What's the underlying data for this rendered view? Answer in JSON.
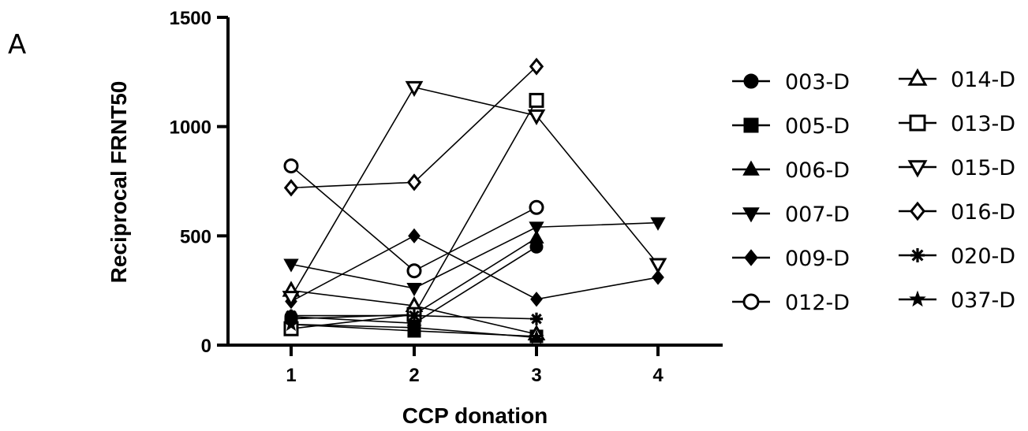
{
  "panel_label": "A",
  "chart_data": {
    "type": "line",
    "title": "",
    "xlabel": "CCP donation",
    "ylabel": "Reciprocal FRNT50",
    "xlim": [
      0.5,
      4.5
    ],
    "ylim": [
      0,
      1500
    ],
    "x_ticks": [
      1,
      2,
      3,
      4
    ],
    "y_ticks": [
      0,
      500,
      1000,
      1500
    ],
    "grid": false,
    "legend_position": "right",
    "series": [
      {
        "name": "003-D",
        "marker": "circle-filled",
        "points": [
          [
            1,
            130
          ],
          [
            2,
            100
          ],
          [
            3,
            450
          ]
        ]
      },
      {
        "name": "005-D",
        "marker": "square-filled",
        "points": [
          [
            1,
            95
          ],
          [
            2,
            65
          ],
          [
            3,
            40
          ]
        ]
      },
      {
        "name": "006-D",
        "marker": "triangle-up-filled",
        "points": [
          [
            1,
            120
          ],
          [
            2,
            140
          ],
          [
            3,
            490
          ]
        ]
      },
      {
        "name": "007-D",
        "marker": "triangle-down-filled",
        "points": [
          [
            1,
            370
          ],
          [
            2,
            260
          ],
          [
            3,
            540
          ],
          [
            4,
            560
          ]
        ]
      },
      {
        "name": "009-D",
        "marker": "diamond-filled",
        "points": [
          [
            1,
            200
          ],
          [
            2,
            500
          ],
          [
            3,
            210
          ],
          [
            4,
            310
          ]
        ]
      },
      {
        "name": "012-D",
        "marker": "circle-open",
        "points": [
          [
            1,
            820
          ],
          [
            2,
            340
          ],
          [
            3,
            630
          ]
        ]
      },
      {
        "name": "014-D",
        "marker": "triangle-up-open",
        "points": [
          [
            1,
            250
          ],
          [
            2,
            180
          ],
          [
            3,
            50
          ]
        ]
      },
      {
        "name": "013-D",
        "marker": "square-open",
        "points": [
          [
            1,
            75
          ],
          [
            2,
            140
          ],
          [
            3,
            1120
          ]
        ]
      },
      {
        "name": "015-D",
        "marker": "triangle-down-open",
        "points": [
          [
            1,
            220
          ],
          [
            2,
            1180
          ],
          [
            3,
            1050
          ],
          [
            4,
            370
          ]
        ]
      },
      {
        "name": "016-D",
        "marker": "diamond-open",
        "points": [
          [
            1,
            720
          ],
          [
            2,
            745
          ],
          [
            3,
            1275
          ]
        ]
      },
      {
        "name": "020-D",
        "marker": "asterisk",
        "points": [
          [
            1,
            135
          ],
          [
            2,
            135
          ],
          [
            3,
            120
          ]
        ]
      },
      {
        "name": "037-D",
        "marker": "star",
        "points": [
          [
            1,
            95
          ],
          [
            2,
            80
          ],
          [
            3,
            35
          ]
        ]
      }
    ]
  }
}
